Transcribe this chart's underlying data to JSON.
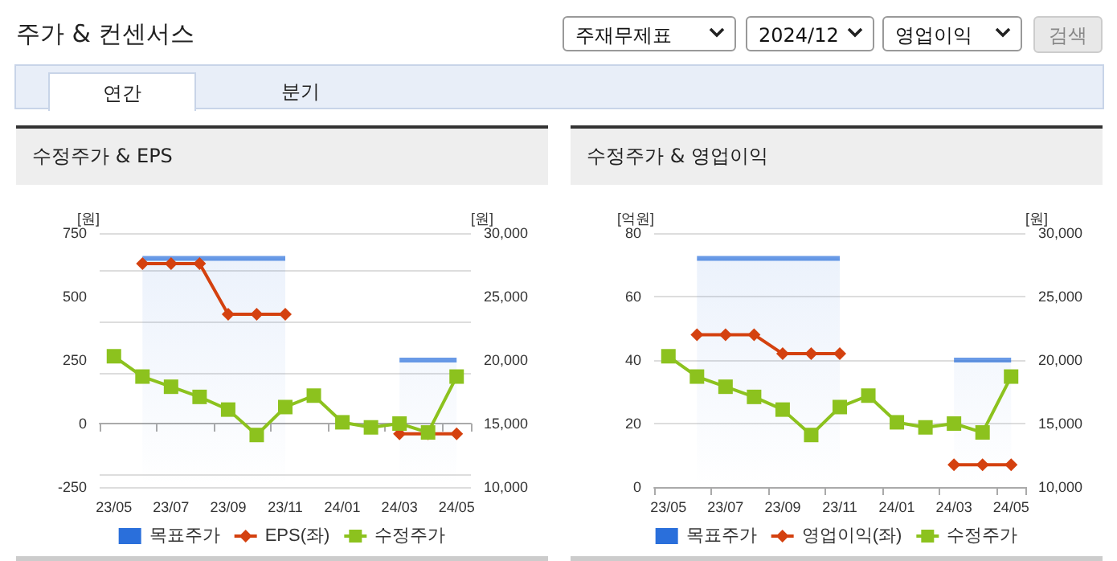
{
  "chart_data": [
    {
      "type": "other",
      "title": "주가 & 컨센서스",
      "annotations": [
        "주재무제표",
        "2024/12",
        "영업이익",
        "검색",
        "연간",
        "분기"
      ]
    },
    {
      "type": "line",
      "title": "수정주가 & EPS",
      "ylabel": "[원]",
      "y2label": "[원]",
      "categories": [
        "23/05",
        null,
        "23/07",
        null,
        "23/09",
        null,
        "23/11",
        null,
        "24/01",
        null,
        "24/03",
        null,
        "24/05"
      ],
      "series": [
        {
          "name": "목표주가",
          "type": "area",
          "axis": "y2",
          "color": "#2a6fdb",
          "marker": "none",
          "values": [
            null,
            28000,
            28000,
            28000,
            28000,
            28000,
            28000,
            null,
            null,
            null,
            20000,
            20000,
            20000
          ]
        },
        {
          "name": "EPS(좌)",
          "type": "line",
          "color": "#d4410f",
          "marker": "diamond",
          "values": [
            null,
            630,
            630,
            630,
            430,
            430,
            430,
            null,
            null,
            null,
            -40,
            -40,
            -40
          ]
        },
        {
          "name": "수정주가",
          "type": "line",
          "axis": "y2",
          "color": "#8cc21e",
          "marker": "square",
          "values": [
            20300,
            18700,
            17900,
            17100,
            16100,
            14100,
            16300,
            17200,
            15100,
            14700,
            15000,
            14300,
            18700
          ]
        }
      ],
      "ylim": [
        -250,
        750
      ],
      "yticks": [
        -250,
        0,
        250,
        500,
        750
      ],
      "y2lim": [
        10000,
        30000
      ],
      "y2ticks": [
        {
          "value": 10000,
          "label": "10,000"
        },
        {
          "value": 15000,
          "label": "15,000"
        },
        {
          "value": 20000,
          "label": "20,000"
        },
        {
          "value": 25000,
          "label": "25,000"
        },
        {
          "value": 30000,
          "label": "30,000"
        }
      ],
      "grid": "y",
      "legend": "bottom"
    },
    {
      "type": "line",
      "title": "수정주가 & 영업이익",
      "ylabel": "[억원]",
      "y2label": "[원]",
      "categories": [
        "23/05",
        null,
        "23/07",
        null,
        "23/09",
        null,
        "23/11",
        null,
        "24/01",
        null,
        "24/03",
        null,
        "24/05"
      ],
      "series": [
        {
          "name": "목표주가",
          "type": "area",
          "axis": "y2",
          "color": "#2a6fdb",
          "marker": "none",
          "values": [
            null,
            28000,
            28000,
            28000,
            28000,
            28000,
            28000,
            null,
            null,
            null,
            20000,
            20000,
            20000
          ]
        },
        {
          "name": "영업이익(좌)",
          "type": "line",
          "color": "#d4410f",
          "marker": "diamond",
          "values": [
            null,
            48,
            48,
            48,
            42,
            42,
            42,
            null,
            null,
            null,
            7,
            7,
            7
          ]
        },
        {
          "name": "수정주가",
          "type": "line",
          "axis": "y2",
          "color": "#8cc21e",
          "marker": "square",
          "values": [
            20300,
            18700,
            17900,
            17100,
            16100,
            14100,
            16300,
            17200,
            15100,
            14700,
            15000,
            14300,
            18700
          ]
        }
      ],
      "ylim": [
        0,
        80
      ],
      "yticks": [
        0,
        20,
        40,
        60,
        80
      ],
      "y2lim": [
        10000,
        30000
      ],
      "y2ticks": [
        {
          "value": 10000,
          "label": "10,000"
        },
        {
          "value": 15000,
          "label": "15,000"
        },
        {
          "value": 20000,
          "label": "20,000"
        },
        {
          "value": 25000,
          "label": "25,000"
        },
        {
          "value": 30000,
          "label": "30,000"
        }
      ],
      "grid": "y",
      "legend": "bottom"
    }
  ]
}
